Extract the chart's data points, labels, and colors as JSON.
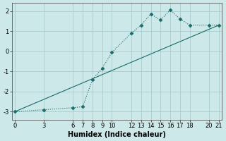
{
  "xlabel": "Humidex (Indice chaleur)",
  "background_color": "#cce8e8",
  "grid_color": "#aacccc",
  "line_color": "#1a6b6b",
  "line1_x": [
    0,
    3,
    6,
    7,
    8,
    9,
    10,
    12,
    13,
    14,
    15,
    16,
    17,
    18,
    20,
    21
  ],
  "line1_y": [
    -3.0,
    -2.9,
    -2.8,
    -2.75,
    -1.4,
    -0.85,
    -0.05,
    0.9,
    1.3,
    1.85,
    1.55,
    2.05,
    1.6,
    1.3,
    1.3,
    1.3
  ],
  "line2_x": [
    0,
    21
  ],
  "line2_y": [
    -3.0,
    1.3
  ],
  "ylim": [
    -3.4,
    2.4
  ],
  "xlim": [
    -0.3,
    21.3
  ],
  "yticks": [
    -3,
    -2,
    -1,
    0,
    1,
    2
  ],
  "xticks": [
    0,
    3,
    6,
    7,
    8,
    9,
    10,
    12,
    13,
    14,
    15,
    16,
    17,
    18,
    20,
    21
  ],
  "markersize": 2.5,
  "linewidth": 0.8,
  "fontsize_ticks": 6,
  "fontsize_xlabel": 7
}
